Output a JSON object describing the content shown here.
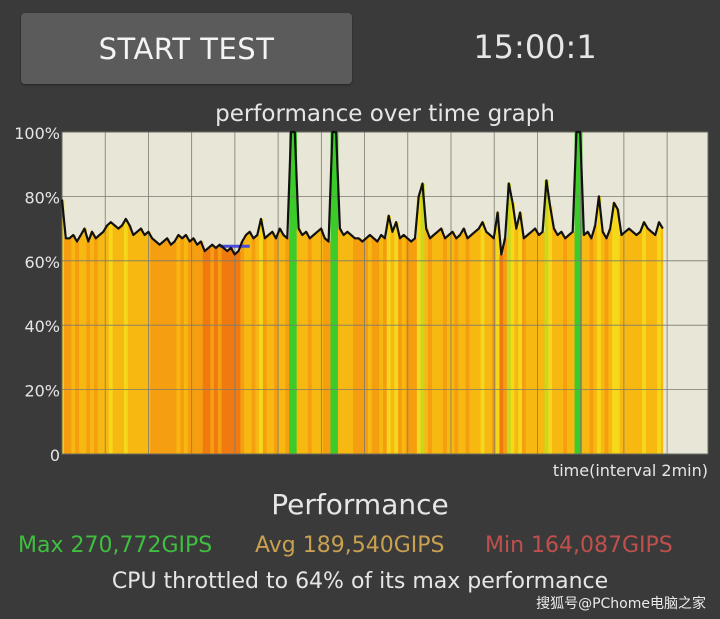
{
  "header": {
    "start_button_label": "START TEST",
    "timer": "15:00:1"
  },
  "graph": {
    "title": "performance over time graph",
    "xlabel": "time(interval 2min)"
  },
  "chart_data": {
    "type": "area",
    "title": "performance over time graph",
    "xlabel": "time(interval 2min)",
    "ylabel": "",
    "ylim": [
      0,
      100
    ],
    "y_ticks": [
      "100%",
      "80%",
      "60%",
      "40%",
      "20%",
      "0"
    ],
    "x_grid_divisions": 15,
    "grid": true,
    "background_color": "#e8e6d6",
    "line_color": "#111111",
    "series": [
      {
        "values": [
          79,
          67,
          67,
          68,
          66,
          68,
          70,
          66,
          69,
          67,
          68,
          69,
          71,
          72,
          71,
          70,
          71,
          73,
          71,
          68,
          69,
          70,
          68,
          69,
          67,
          66,
          65,
          66,
          67,
          65,
          66,
          68,
          67,
          68,
          66,
          67,
          65,
          66,
          63,
          64,
          65,
          64,
          65,
          64,
          63,
          64,
          62,
          63,
          66,
          68,
          69,
          67,
          68,
          73,
          67,
          68,
          69,
          67,
          70,
          68,
          67,
          102,
          100,
          70,
          68,
          69,
          67,
          68,
          69,
          70,
          67,
          66,
          101,
          102,
          70,
          68,
          69,
          68,
          67,
          67,
          66,
          67,
          68,
          67,
          66,
          68,
          67,
          74,
          69,
          72,
          67,
          68,
          67,
          66,
          67,
          80,
          84,
          70,
          67,
          68,
          69,
          70,
          67,
          68,
          69,
          67,
          68,
          70,
          67,
          68,
          69,
          70,
          72,
          69,
          68,
          67,
          75,
          62,
          67,
          84,
          78,
          70,
          75,
          67,
          68,
          69,
          70,
          68,
          69,
          85,
          77,
          70,
          68,
          69,
          67,
          68,
          69,
          101,
          102,
          68,
          69,
          67,
          71,
          80,
          69,
          67,
          70,
          78,
          76,
          68,
          69,
          70,
          69,
          68,
          69,
          72,
          70,
          69,
          68,
          72,
          70
        ]
      }
    ],
    "min_marker": {
      "from_index": 42,
      "to_index": 50,
      "value": 64.5,
      "color": "#4a4adc"
    }
  },
  "performance": {
    "title": "Performance",
    "max_label": "Max 270,772GIPS",
    "avg_label": "Avg 189,540GIPS",
    "min_label": "Min 164,087GIPS",
    "max_color": "#3fbf3f",
    "avg_color": "#c8a050",
    "min_color": "#c0504d",
    "throttle_text": "CPU throttled to 64% of its max performance"
  },
  "watermark": "搜狐号@PChome电脑之家"
}
